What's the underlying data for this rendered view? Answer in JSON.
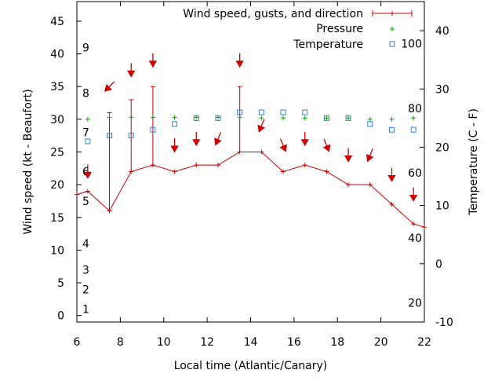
{
  "chart_data": {
    "type": "line",
    "xlabel": "Local time (Atlantic/Canary)",
    "ylabel": "Wind speed (kt - Beaufort)",
    "y2label": "Temperature (C - F)",
    "xlim": [
      6,
      22
    ],
    "ylim": [
      -1,
      48
    ],
    "y2lim": [
      -10,
      45
    ],
    "xticks": [
      "6",
      "8",
      "10",
      "12",
      "14",
      "16",
      "18",
      "20",
      "22"
    ],
    "yticks": [
      "0",
      "5",
      "10",
      "15",
      "20",
      "25",
      "30",
      "35",
      "40",
      "45"
    ],
    "y2ticks": [
      "-10",
      "0",
      "10",
      "20",
      "30",
      "40"
    ],
    "beaufort": {
      "labels": [
        "1",
        "2",
        "3",
        "4",
        "5",
        "6",
        "7",
        "8",
        "9"
      ],
      "positions": [
        1,
        4,
        7,
        11,
        17.5,
        22,
        28,
        34,
        41
      ]
    },
    "fahrenheit": {
      "labels": [
        "20",
        "40",
        "60",
        "80",
        "100"
      ],
      "positions": [
        -6.7,
        4.4,
        15.6,
        26.7,
        37.8
      ]
    },
    "grid": false,
    "legend_position": "top-right",
    "series": [
      {
        "name": "Wind speed, gusts, and direction",
        "color": "#cc0000",
        "x": [
          6.0,
          6.5,
          7.5,
          8.5,
          9.5,
          10.5,
          11.5,
          12.5,
          13.5,
          14.5,
          15.5,
          16.5,
          17.5,
          18.5,
          19.5,
          20.5,
          21.5,
          22.0
        ],
        "y": [
          18.5,
          19,
          16,
          22,
          23,
          22,
          23,
          23,
          25,
          25,
          22,
          23,
          22,
          20,
          20,
          17,
          14,
          13.5
        ]
      },
      {
        "name": "Pressure",
        "color": "#00aa00",
        "x": [
          6.5,
          7.5,
          8.5,
          9.5,
          10.5,
          11.5,
          12.5,
          13.5,
          14.5,
          15.5,
          16.5,
          17.5,
          18.5,
          19.5,
          20.5,
          21.5
        ],
        "y": [
          30,
          30.3,
          30.3,
          30.3,
          30.3,
          30.3,
          30.3,
          30.3,
          30.2,
          30.2,
          30.2,
          30.2,
          30.2,
          30,
          30,
          30.2
        ]
      },
      {
        "name": "Temperature",
        "color": "#3a7dd4",
        "x": [
          6.5,
          7.5,
          8.5,
          9.5,
          10.5,
          11.5,
          12.5,
          13.5,
          14.5,
          15.5,
          16.5,
          17.5,
          18.5,
          19.5,
          20.5,
          21.5
        ],
        "y": [
          21,
          22,
          22,
          23,
          24,
          25,
          25,
          26,
          26,
          26,
          26,
          25,
          25,
          24,
          23,
          23
        ]
      }
    ],
    "gusts": {
      "x": [
        6.5,
        7.5,
        8.5,
        9.5,
        13.5
      ],
      "low": [
        19,
        16,
        22,
        23,
        25
      ],
      "high": [
        19,
        31,
        33,
        35,
        35
      ]
    },
    "wind_direction": {
      "x": [
        6.5,
        7.5,
        8.5,
        9.5,
        10.5,
        11.5,
        12.5,
        13.5,
        14.5,
        15.5,
        16.5,
        17.5,
        18.5,
        19.5,
        20.5,
        21.5
      ],
      "y": [
        22,
        35,
        37.5,
        39,
        26,
        27,
        27,
        39,
        29,
        26,
        27,
        26,
        24.5,
        24.5,
        21.5,
        18.5
      ],
      "direction": [
        "N",
        "NE",
        "N",
        "N",
        "N",
        "N",
        "NNE",
        "N",
        "NNE",
        "NNW",
        "N",
        "NNW",
        "N",
        "NNE",
        "N",
        "N"
      ]
    }
  }
}
